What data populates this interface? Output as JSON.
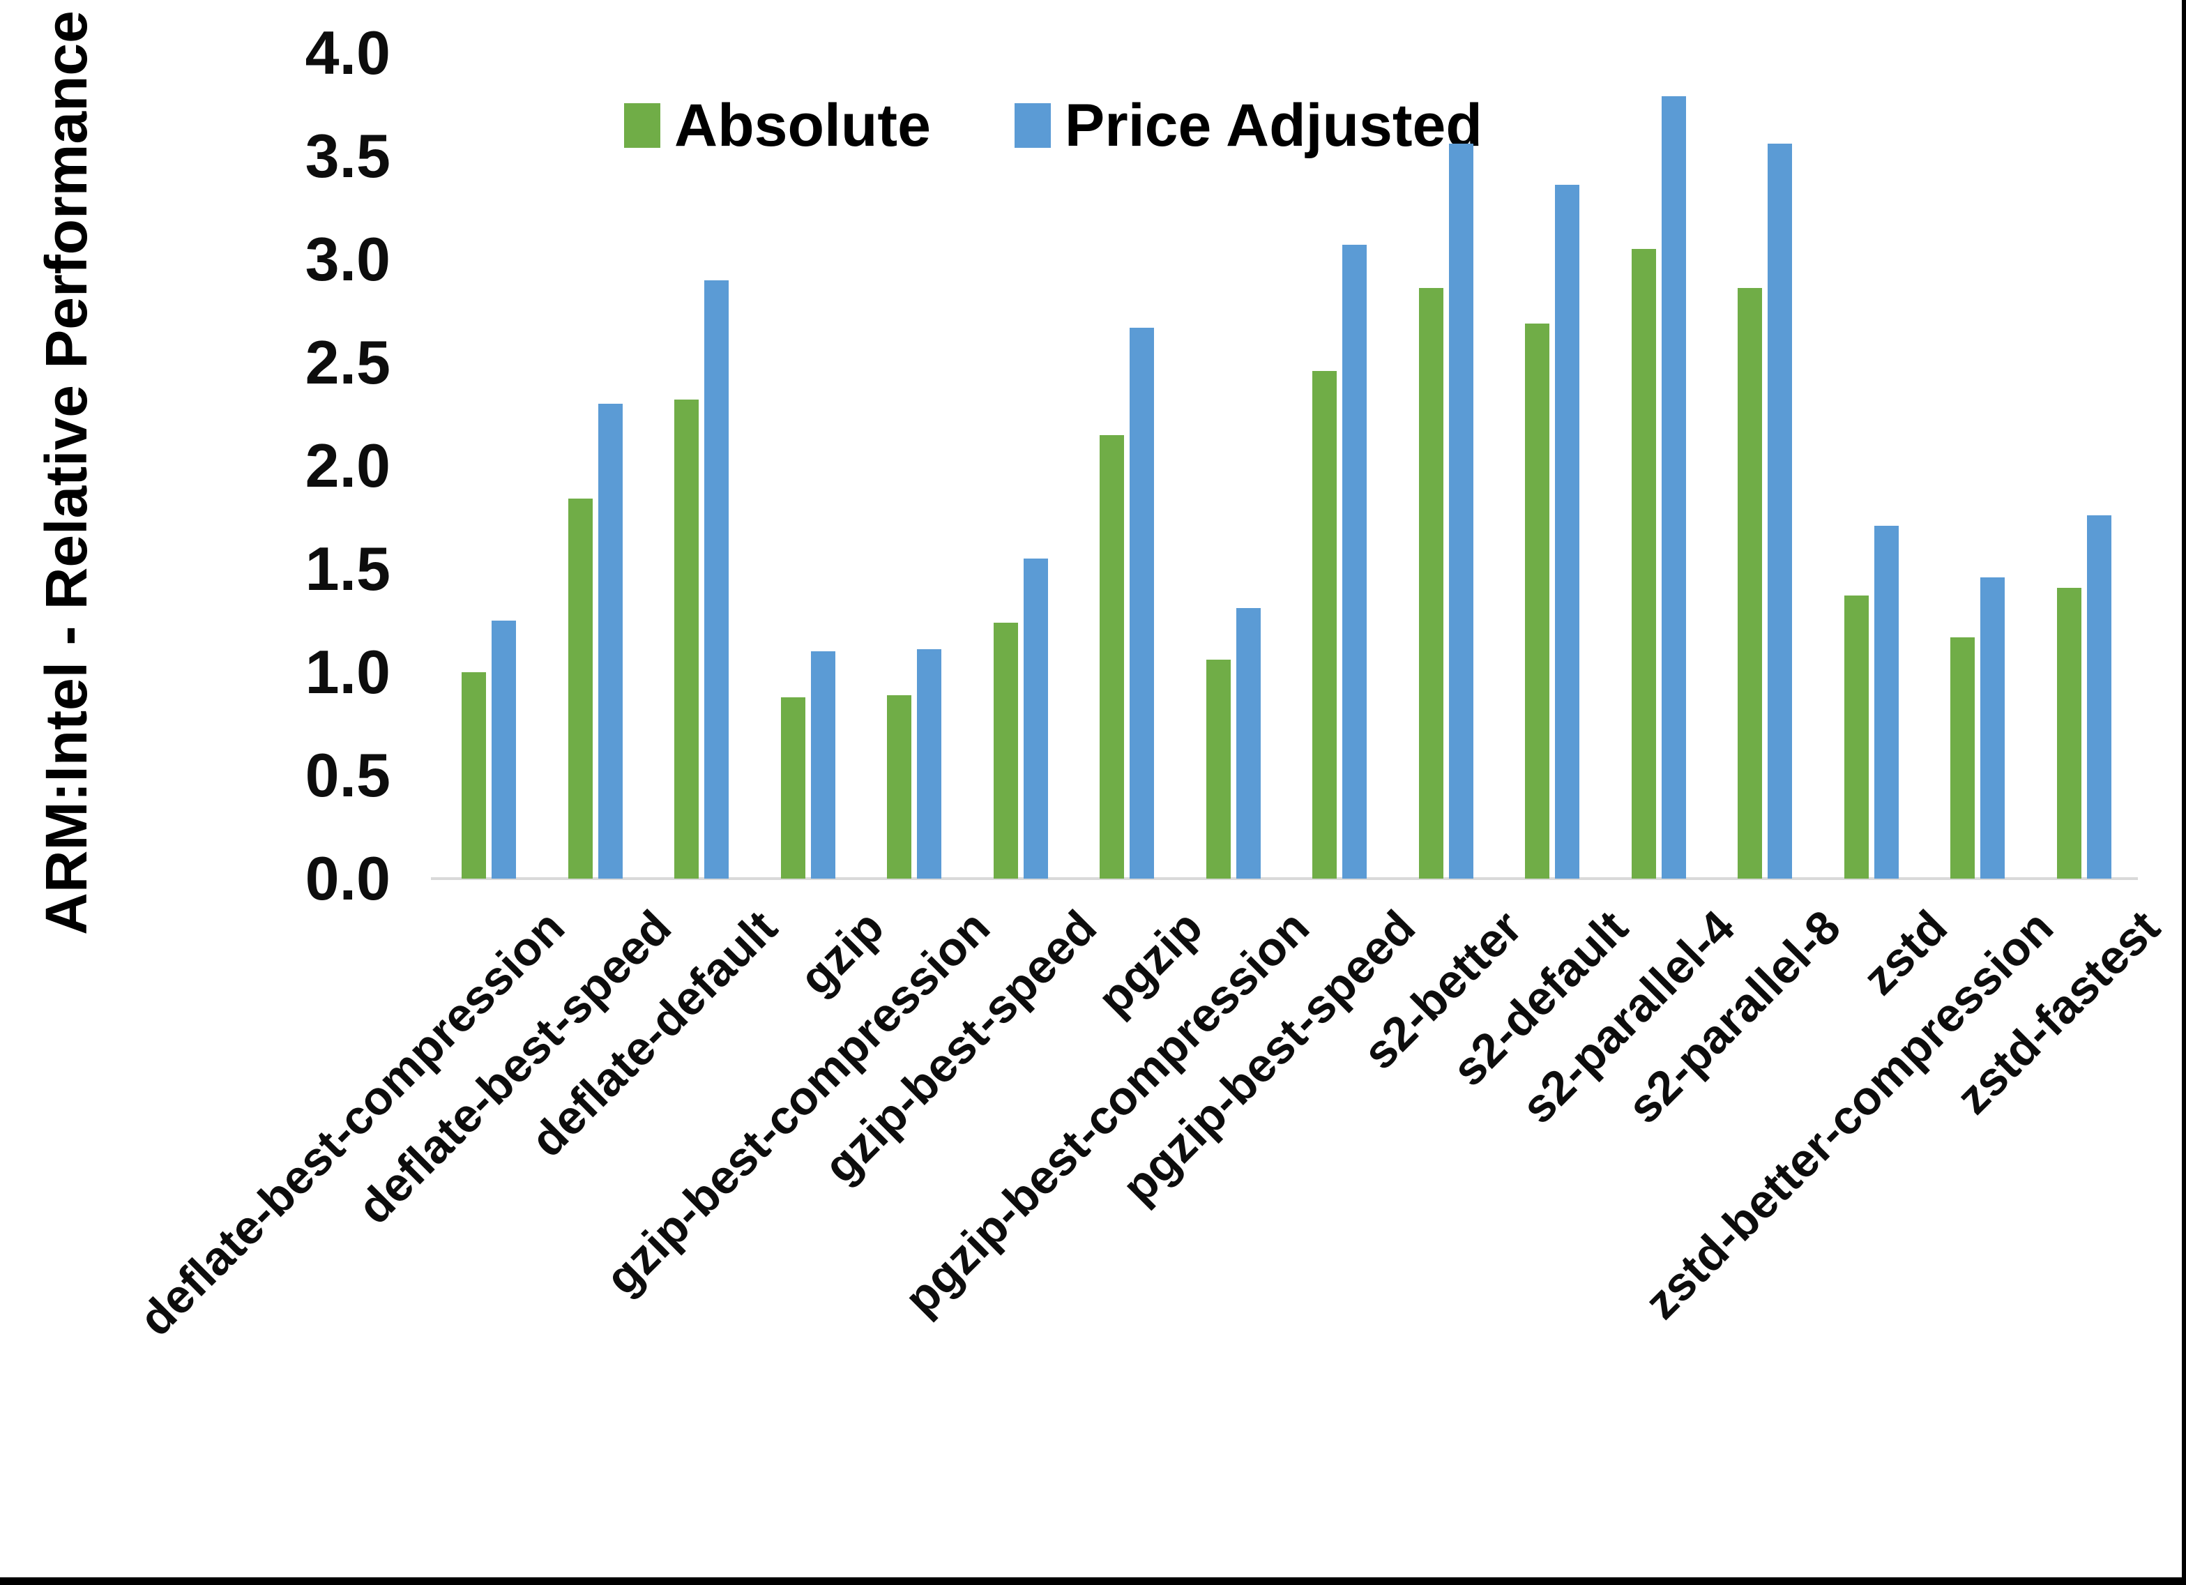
{
  "chart_data": {
    "type": "bar",
    "title": "",
    "xlabel": "",
    "ylabel": "ARM:Intel - Relative Performance",
    "ylim": [
      0.0,
      4.0
    ],
    "ytick_step": 0.5,
    "ytick_labels": [
      "0.0",
      "0.5",
      "1.0",
      "1.5",
      "2.0",
      "2.5",
      "3.0",
      "3.5",
      "4.0"
    ],
    "grid": false,
    "legend_position": "top-center-inside",
    "categories": [
      "deflate-best-compression",
      "deflate-best-speed",
      "deflate-default",
      "gzip",
      "gzip-best-compression",
      "gzip-best-speed",
      "pgzip",
      "pgzip-best-compression",
      "pgzip-best-speed",
      "s2-better",
      "s2-default",
      "s2-parallel-4",
      "s2-parallel-8",
      "zstd",
      "zstd-better-compression",
      "zstd-fastest"
    ],
    "series": [
      {
        "name": "Absolute",
        "color": "#70AD47",
        "values": [
          1.0,
          1.84,
          2.32,
          0.88,
          0.89,
          1.24,
          2.15,
          1.06,
          2.46,
          2.86,
          2.69,
          3.05,
          2.86,
          1.37,
          1.17,
          1.41
        ]
      },
      {
        "name": "Price Adjusted",
        "color": "#5B9BD5",
        "values": [
          1.25,
          2.3,
          2.9,
          1.1,
          1.11,
          1.55,
          2.67,
          1.31,
          3.07,
          3.56,
          3.36,
          3.79,
          3.56,
          1.71,
          1.46,
          1.76
        ]
      }
    ]
  },
  "colors": {
    "background": "#ffffff",
    "axis_line": "#d9d9d9",
    "text": "#000000",
    "frame": "#000000"
  }
}
